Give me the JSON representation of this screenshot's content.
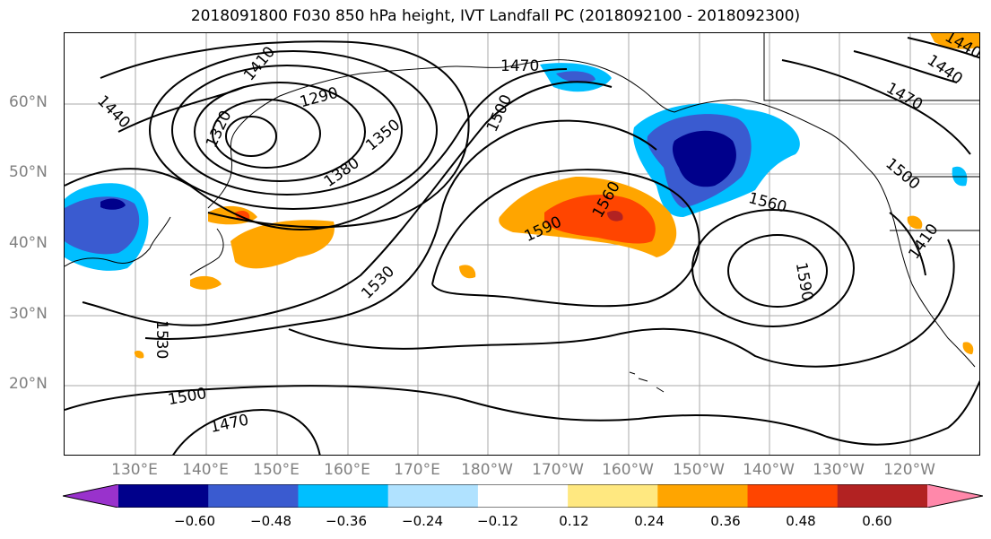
{
  "title": "2018091800 F030 850 hPa height, IVT Landfall PC (2018092100 - 2018092300)",
  "lat_labels": [
    "60°N",
    "50°N",
    "40°N",
    "30°N",
    "20°N"
  ],
  "lon_labels": [
    "130°E",
    "140°E",
    "150°E",
    "160°E",
    "170°E",
    "180°W",
    "170°W",
    "160°W",
    "150°W",
    "140°W",
    "130°W",
    "120°W"
  ],
  "contour_labels": [
    "1410",
    "1470",
    "1290",
    "1320",
    "1350",
    "1380",
    "1440",
    "1500",
    "1560",
    "1590",
    "1530",
    "1560",
    "1590",
    "1530",
    "1500",
    "1470",
    "1500",
    "1440",
    "1410",
    "1470",
    "1440"
  ],
  "colorbar": {
    "ticks": [
      "−0.60",
      "−0.48",
      "−0.36",
      "−0.24",
      "−0.12",
      "0.12",
      "0.24",
      "0.36",
      "0.48",
      "0.60"
    ],
    "colors": [
      "#9932CC",
      "#00008B",
      "#3A5BD0",
      "#00BFFF",
      "#B0E2FF",
      "#FFFFFF",
      "#FFE880",
      "#FFA500",
      "#FF4500",
      "#B22222",
      "#FF88AA"
    ]
  }
}
